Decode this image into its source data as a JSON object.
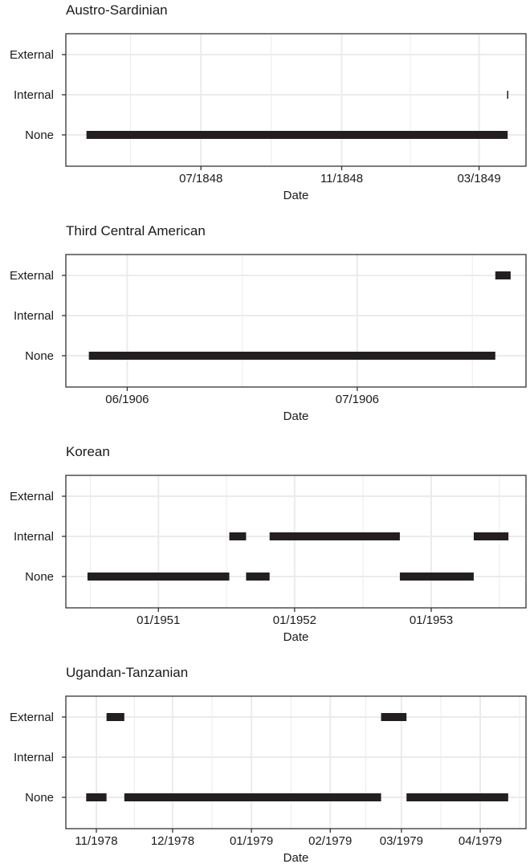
{
  "chart_data": [
    {
      "type": "bar",
      "orientation": "horizontal-timeline",
      "title": "Austro-Sardinian",
      "xlabel": "Date",
      "ylabel": "",
      "categories": [
        "External",
        "Internal",
        "None"
      ],
      "xlim": [
        "1848-03-05",
        "1849-04-11"
      ],
      "x_ticks": [
        {
          "date": "1848-07-01",
          "label": "07/1848"
        },
        {
          "date": "1848-11-01",
          "label": "11/1848"
        },
        {
          "date": "1849-03-01",
          "label": "03/1849"
        }
      ],
      "segments": [
        {
          "category": "None",
          "start": "1848-03-23",
          "end": "1849-03-26"
        },
        {
          "category": "Internal",
          "start": "1849-03-26",
          "end": "1849-03-26"
        }
      ],
      "grid": true
    },
    {
      "type": "bar",
      "orientation": "horizontal-timeline",
      "title": "Third Central American",
      "xlabel": "Date",
      "ylabel": "",
      "categories": [
        "External",
        "Internal",
        "None"
      ],
      "xlim": [
        "1906-05-24",
        "1906-07-23"
      ],
      "x_ticks": [
        {
          "date": "1906-06-01",
          "label": "06/1906"
        },
        {
          "date": "1906-07-01",
          "label": "07/1906"
        }
      ],
      "segments": [
        {
          "category": "None",
          "start": "1906-05-27",
          "end": "1906-07-19"
        },
        {
          "category": "External",
          "start": "1906-07-19",
          "end": "1906-07-21"
        }
      ],
      "grid": true
    },
    {
      "type": "bar",
      "orientation": "horizontal-timeline",
      "title": "Korean",
      "xlabel": "Date",
      "ylabel": "",
      "categories": [
        "External",
        "Internal",
        "None"
      ],
      "xlim": [
        "1950-04-28",
        "1953-09-12"
      ],
      "x_ticks": [
        {
          "date": "1951-01-01",
          "label": "01/1951"
        },
        {
          "date": "1952-01-01",
          "label": "01/1952"
        },
        {
          "date": "1953-01-01",
          "label": "01/1953"
        }
      ],
      "segments": [
        {
          "category": "None",
          "start": "1950-06-25",
          "end": "1951-07-10"
        },
        {
          "category": "Internal",
          "start": "1951-07-10",
          "end": "1951-08-24"
        },
        {
          "category": "None",
          "start": "1951-08-24",
          "end": "1951-10-26"
        },
        {
          "category": "Internal",
          "start": "1951-10-26",
          "end": "1952-10-09"
        },
        {
          "category": "None",
          "start": "1952-10-09",
          "end": "1953-04-25"
        },
        {
          "category": "Internal",
          "start": "1953-04-25",
          "end": "1953-07-27"
        }
      ],
      "grid": true
    },
    {
      "type": "bar",
      "orientation": "horizontal-timeline",
      "title": "Ugandan-Tanzanian",
      "xlabel": "Date",
      "ylabel": "",
      "categories": [
        "External",
        "Internal",
        "None"
      ],
      "xlim": [
        "1978-10-20",
        "1979-04-19"
      ],
      "x_ticks": [
        {
          "date": "1978-11-01",
          "label": "11/1978"
        },
        {
          "date": "1978-12-01",
          "label": "12/1978"
        },
        {
          "date": "1979-01-01",
          "label": "01/1979"
        },
        {
          "date": "1979-02-01",
          "label": "02/1979"
        },
        {
          "date": "1979-03-01",
          "label": "03/1979"
        },
        {
          "date": "1979-04-01",
          "label": "04/1979"
        }
      ],
      "segments": [
        {
          "category": "None",
          "start": "1978-10-28",
          "end": "1978-11-05"
        },
        {
          "category": "External",
          "start": "1978-11-05",
          "end": "1978-11-12"
        },
        {
          "category": "None",
          "start": "1978-11-12",
          "end": "1979-02-21"
        },
        {
          "category": "External",
          "start": "1979-02-21",
          "end": "1979-03-03"
        },
        {
          "category": "None",
          "start": "1979-03-03",
          "end": "1979-04-12"
        }
      ],
      "grid": true
    }
  ],
  "colors": {
    "bar": "#231f20",
    "panel_border": "#333333",
    "grid": "#ebebeb"
  }
}
